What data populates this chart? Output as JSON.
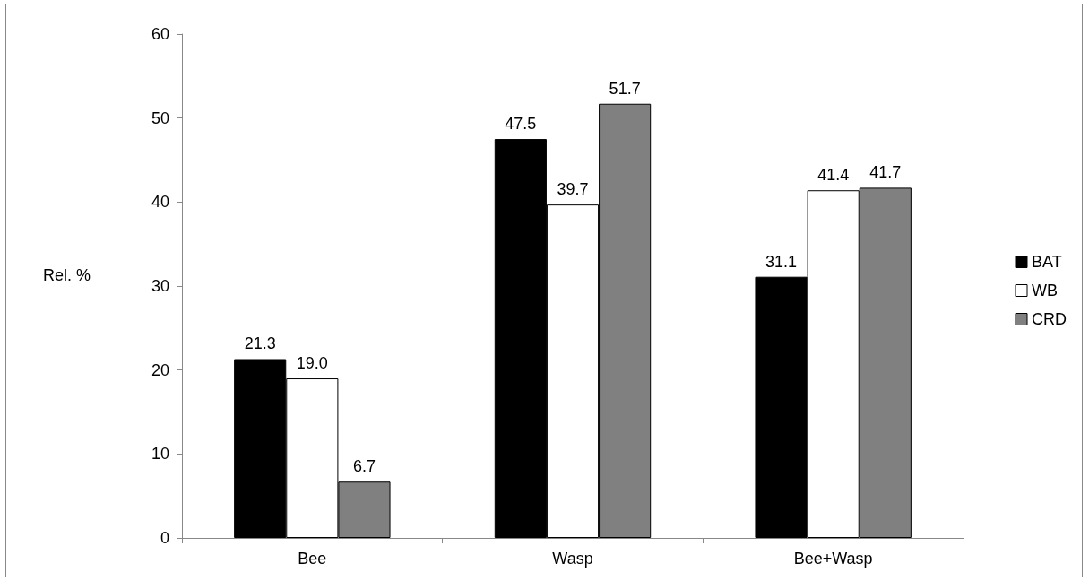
{
  "chart_data": {
    "type": "bar",
    "ylabel": "Rel. %",
    "categories": [
      "Bee",
      "Wasp",
      "Bee+Wasp"
    ],
    "series": [
      {
        "name": "BAT",
        "color": "#000000",
        "values": [
          21.3,
          47.5,
          31.1
        ],
        "value_labels": [
          "21.3",
          "47.5",
          "31.1"
        ]
      },
      {
        "name": "WB",
        "color": "#ffffff",
        "values": [
          19.0,
          39.7,
          41.4
        ],
        "value_labels": [
          "19.0",
          "39.7",
          "41.4"
        ]
      },
      {
        "name": "CRD",
        "color": "#808080",
        "values": [
          6.7,
          51.7,
          41.7
        ],
        "value_labels": [
          "6.7",
          "51.7",
          "41.7"
        ]
      }
    ],
    "ylim": [
      0,
      60
    ],
    "yticks": [
      0,
      10,
      20,
      30,
      40,
      50,
      60
    ],
    "legend": "right"
  }
}
